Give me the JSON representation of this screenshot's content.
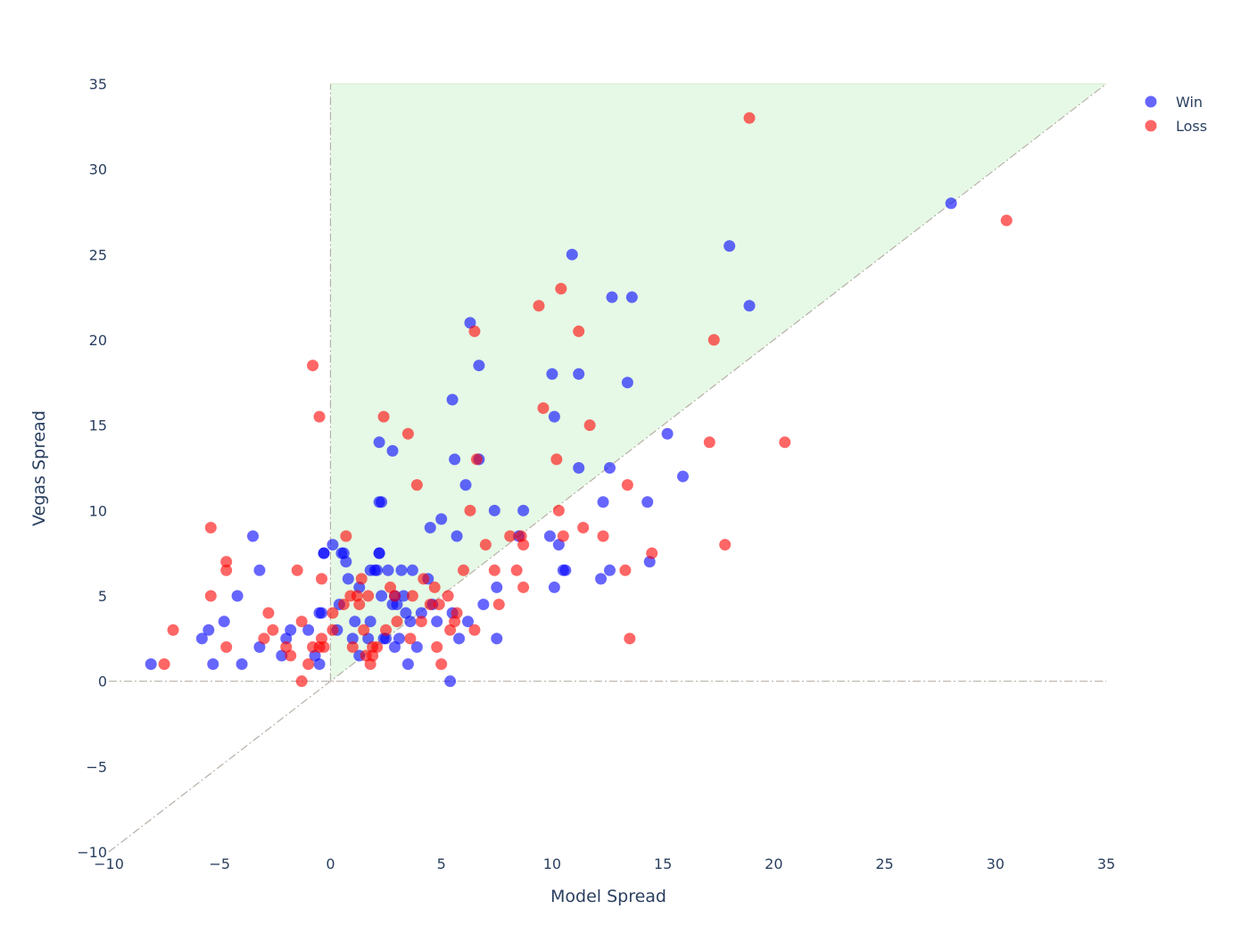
{
  "chart_data": {
    "type": "scatter",
    "title": "",
    "xlabel": "Model Spread",
    "ylabel": "Vegas Spread",
    "xlim": [
      -10,
      35
    ],
    "ylim": [
      -10,
      35
    ],
    "x_ticks": [
      -10,
      -5,
      0,
      5,
      10,
      15,
      20,
      25,
      30,
      35
    ],
    "y_ticks": [
      -10,
      -5,
      0,
      5,
      10,
      15,
      20,
      25,
      30,
      35
    ],
    "grid": false,
    "legend_position": "top-right",
    "shaded_region": {
      "polygon": [
        [
          0,
          0
        ],
        [
          0,
          35
        ],
        [
          35,
          35
        ]
      ],
      "color": "#e6f9e6"
    },
    "reference_lines": [
      {
        "name": "y=x diagonal",
        "from": [
          -10,
          -10
        ],
        "to": [
          35,
          35
        ],
        "dash": "dashdot"
      },
      {
        "name": "y=0 horizontal",
        "from": [
          -10,
          0
        ],
        "to": [
          35,
          0
        ],
        "dash": "dashdot"
      },
      {
        "name": "x=0 vertical",
        "from": [
          0,
          0
        ],
        "to": [
          0,
          35
        ],
        "dash": "dashdot"
      }
    ],
    "series": [
      {
        "name": "Win",
        "color": "#0000ff",
        "points": [
          [
            -8.1,
            1
          ],
          [
            -5.8,
            2.5
          ],
          [
            -5.5,
            3
          ],
          [
            -5.3,
            1
          ],
          [
            -4.8,
            3.5
          ],
          [
            -4.2,
            5
          ],
          [
            -4.0,
            1
          ],
          [
            -3.5,
            8.5
          ],
          [
            -3.2,
            6.5
          ],
          [
            -3.2,
            2
          ],
          [
            -2.2,
            1.5
          ],
          [
            -2.0,
            2.5
          ],
          [
            -1.8,
            3
          ],
          [
            -1.0,
            3
          ],
          [
            -0.7,
            1.5
          ],
          [
            -0.5,
            1
          ],
          [
            -0.5,
            4
          ],
          [
            -0.4,
            4
          ],
          [
            -0.3,
            7.5
          ],
          [
            -0.3,
            7.5
          ],
          [
            0.1,
            8
          ],
          [
            0.3,
            3
          ],
          [
            0.4,
            4.5
          ],
          [
            0.5,
            7.5
          ],
          [
            0.6,
            7.5
          ],
          [
            0.7,
            7
          ],
          [
            0.8,
            6
          ],
          [
            1.0,
            2.5
          ],
          [
            1.1,
            3.5
          ],
          [
            1.3,
            5.5
          ],
          [
            1.3,
            1.5
          ],
          [
            1.7,
            2.5
          ],
          [
            1.8,
            6.5
          ],
          [
            1.8,
            3.5
          ],
          [
            2.0,
            6.5
          ],
          [
            2.1,
            6.5
          ],
          [
            2.2,
            7.5
          ],
          [
            2.2,
            7.5
          ],
          [
            2.2,
            14
          ],
          [
            2.2,
            10.5
          ],
          [
            2.3,
            10.5
          ],
          [
            2.3,
            5
          ],
          [
            2.4,
            2.5
          ],
          [
            2.5,
            2.5
          ],
          [
            2.6,
            6.5
          ],
          [
            2.8,
            4.5
          ],
          [
            2.8,
            13.5
          ],
          [
            2.9,
            2
          ],
          [
            2.9,
            5
          ],
          [
            3.0,
            4.5
          ],
          [
            3.1,
            2.5
          ],
          [
            3.2,
            6.5
          ],
          [
            3.3,
            5
          ],
          [
            3.4,
            4
          ],
          [
            3.5,
            1
          ],
          [
            3.6,
            3.5
          ],
          [
            3.7,
            6.5
          ],
          [
            3.9,
            2
          ],
          [
            4.1,
            4
          ],
          [
            4.4,
            6
          ],
          [
            4.5,
            9
          ],
          [
            4.6,
            4.5
          ],
          [
            4.8,
            3.5
          ],
          [
            5.0,
            9.5
          ],
          [
            5.4,
            0
          ],
          [
            5.5,
            16.5
          ],
          [
            5.5,
            4
          ],
          [
            5.6,
            13
          ],
          [
            5.7,
            8.5
          ],
          [
            5.8,
            2.5
          ],
          [
            6.1,
            11.5
          ],
          [
            6.2,
            3.5
          ],
          [
            6.3,
            21
          ],
          [
            6.7,
            13
          ],
          [
            6.7,
            18.5
          ],
          [
            6.9,
            4.5
          ],
          [
            7.4,
            10
          ],
          [
            7.5,
            5.5
          ],
          [
            7.5,
            2.5
          ],
          [
            8.5,
            8.5
          ],
          [
            8.7,
            10
          ],
          [
            9.9,
            8.5
          ],
          [
            10.0,
            18
          ],
          [
            10.1,
            15.5
          ],
          [
            10.1,
            5.5
          ],
          [
            10.3,
            8
          ],
          [
            10.5,
            6.5
          ],
          [
            10.6,
            6.5
          ],
          [
            10.9,
            25
          ],
          [
            11.2,
            12.5
          ],
          [
            11.2,
            18
          ],
          [
            12.2,
            6
          ],
          [
            12.3,
            10.5
          ],
          [
            12.6,
            6.5
          ],
          [
            12.6,
            12.5
          ],
          [
            12.7,
            22.5
          ],
          [
            13.4,
            17.5
          ],
          [
            13.6,
            22.5
          ],
          [
            14.3,
            10.5
          ],
          [
            14.4,
            7
          ],
          [
            15.2,
            14.5
          ],
          [
            15.9,
            12
          ],
          [
            18.0,
            25.5
          ],
          [
            18.9,
            22
          ],
          [
            28.0,
            28
          ]
        ]
      },
      {
        "name": "Loss",
        "color": "#ff0000",
        "points": [
          [
            -7.5,
            1
          ],
          [
            -7.1,
            3
          ],
          [
            -5.4,
            9
          ],
          [
            -5.4,
            5
          ],
          [
            -4.7,
            7
          ],
          [
            -4.7,
            6.5
          ],
          [
            -4.7,
            2
          ],
          [
            -3.0,
            2.5
          ],
          [
            -2.8,
            4
          ],
          [
            -2.6,
            3
          ],
          [
            -2.0,
            2
          ],
          [
            -1.8,
            1.5
          ],
          [
            -1.5,
            6.5
          ],
          [
            -1.3,
            3.5
          ],
          [
            -1.3,
            0
          ],
          [
            -1.0,
            1
          ],
          [
            -0.8,
            18.5
          ],
          [
            -0.8,
            2
          ],
          [
            -0.5,
            15.5
          ],
          [
            -0.5,
            2
          ],
          [
            -0.4,
            2.5
          ],
          [
            -0.4,
            6
          ],
          [
            -0.3,
            2
          ],
          [
            0.1,
            3
          ],
          [
            0.1,
            4
          ],
          [
            0.6,
            4.5
          ],
          [
            0.7,
            8.5
          ],
          [
            0.9,
            5
          ],
          [
            1.0,
            2
          ],
          [
            1.2,
            5
          ],
          [
            1.3,
            4.5
          ],
          [
            1.4,
            6
          ],
          [
            1.5,
            3
          ],
          [
            1.6,
            1.5
          ],
          [
            1.7,
            5
          ],
          [
            1.8,
            1
          ],
          [
            1.9,
            2
          ],
          [
            1.9,
            1.5
          ],
          [
            2.1,
            2
          ],
          [
            2.4,
            15.5
          ],
          [
            2.5,
            3
          ],
          [
            2.7,
            5.5
          ],
          [
            2.9,
            5
          ],
          [
            3.0,
            3.5
          ],
          [
            3.5,
            14.5
          ],
          [
            3.6,
            2.5
          ],
          [
            3.7,
            5
          ],
          [
            3.9,
            11.5
          ],
          [
            4.1,
            3.5
          ],
          [
            4.2,
            6
          ],
          [
            4.5,
            4.5
          ],
          [
            4.7,
            5.5
          ],
          [
            4.8,
            2
          ],
          [
            4.9,
            4.5
          ],
          [
            5.0,
            1
          ],
          [
            5.3,
            5
          ],
          [
            5.4,
            3
          ],
          [
            5.6,
            3.5
          ],
          [
            5.7,
            4
          ],
          [
            6.0,
            6.5
          ],
          [
            6.3,
            10
          ],
          [
            6.5,
            20.5
          ],
          [
            6.5,
            3
          ],
          [
            6.6,
            13
          ],
          [
            7.0,
            8
          ],
          [
            7.4,
            6.5
          ],
          [
            7.6,
            4.5
          ],
          [
            8.1,
            8.5
          ],
          [
            8.4,
            6.5
          ],
          [
            8.6,
            8.5
          ],
          [
            8.7,
            8
          ],
          [
            8.7,
            5.5
          ],
          [
            9.4,
            22
          ],
          [
            9.6,
            16
          ],
          [
            10.2,
            13
          ],
          [
            10.3,
            10
          ],
          [
            10.4,
            23
          ],
          [
            10.5,
            8.5
          ],
          [
            11.2,
            20.5
          ],
          [
            11.4,
            9
          ],
          [
            11.7,
            15
          ],
          [
            12.3,
            8.5
          ],
          [
            13.3,
            6.5
          ],
          [
            13.4,
            11.5
          ],
          [
            13.5,
            2.5
          ],
          [
            14.5,
            7.5
          ],
          [
            17.1,
            14
          ],
          [
            17.3,
            20
          ],
          [
            17.8,
            8
          ],
          [
            18.9,
            33
          ],
          [
            20.5,
            14
          ],
          [
            30.5,
            27
          ]
        ]
      }
    ]
  }
}
